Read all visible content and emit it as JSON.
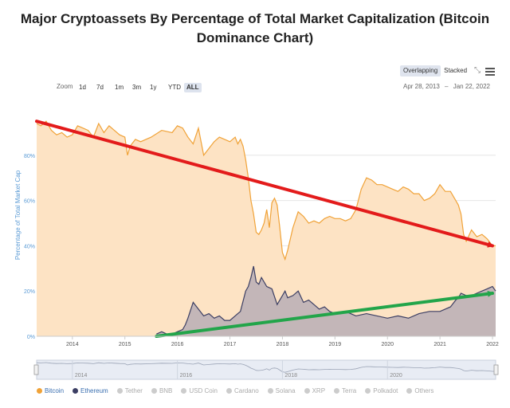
{
  "chart_data": {
    "type": "area",
    "title": "Major Cryptoassets By Percentage of Total Market Capitalization (Bitcoin Dominance Chart)",
    "title_lines": [
      "Major Cryptoassets By Percentage of Total Market Capitalization (Bitcoin",
      "Dominance Chart)"
    ],
    "ylabel": "Percentage of Total Market Cap",
    "xlim": [
      2013.32,
      2022.06
    ],
    "ylim": [
      0,
      100
    ],
    "x_ticks": [
      "2014",
      "2015",
      "2016",
      "2017",
      "2018",
      "2019",
      "2020",
      "2021",
      "2022"
    ],
    "y_ticks": [
      "0%",
      "20%",
      "40%",
      "60%",
      "80%"
    ],
    "y_tick_values": [
      0,
      20,
      40,
      60,
      80
    ],
    "series": [
      {
        "name": "Bitcoin",
        "color": "#f0a237",
        "fill": "#fde3c4",
        "x": [
          2013.32,
          2013.4,
          2013.5,
          2013.6,
          2013.7,
          2013.8,
          2013.9,
          2014.0,
          2014.1,
          2014.2,
          2014.3,
          2014.4,
          2014.5,
          2014.6,
          2014.7,
          2014.8,
          2014.9,
          2015.0,
          2015.05,
          2015.1,
          2015.2,
          2015.3,
          2015.5,
          2015.7,
          2015.9,
          2016.0,
          2016.1,
          2016.2,
          2016.3,
          2016.4,
          2016.5,
          2016.6,
          2016.7,
          2016.8,
          2016.9,
          2017.0,
          2017.1,
          2017.15,
          2017.2,
          2017.25,
          2017.3,
          2017.35,
          2017.4,
          2017.45,
          2017.5,
          2017.55,
          2017.6,
          2017.65,
          2017.7,
          2017.75,
          2017.8,
          2017.85,
          2017.9,
          2017.95,
          2018.0,
          2018.05,
          2018.1,
          2018.2,
          2018.3,
          2018.4,
          2018.5,
          2018.6,
          2018.7,
          2018.8,
          2018.9,
          2019.0,
          2019.1,
          2019.2,
          2019.3,
          2019.4,
          2019.5,
          2019.6,
          2019.7,
          2019.8,
          2019.9,
          2020.0,
          2020.1,
          2020.2,
          2020.3,
          2020.4,
          2020.5,
          2020.6,
          2020.7,
          2020.8,
          2020.9,
          2021.0,
          2021.1,
          2021.2,
          2021.3,
          2021.35,
          2021.4,
          2021.45,
          2021.5,
          2021.6,
          2021.7,
          2021.8,
          2021.9,
          2022.0,
          2022.06
        ],
        "values": [
          94,
          93,
          95,
          91,
          89,
          90,
          88,
          89,
          93,
          92,
          91,
          88,
          94,
          90,
          93,
          91,
          89,
          88,
          80,
          84,
          87,
          86,
          88,
          91,
          90,
          93,
          92,
          88,
          85,
          92,
          80,
          83,
          86,
          88,
          87,
          86,
          88,
          85,
          87,
          84,
          78,
          70,
          60,
          54,
          46,
          45,
          47,
          50,
          56,
          48,
          59,
          61,
          58,
          48,
          37,
          34,
          38,
          48,
          55,
          53,
          50,
          51,
          50,
          52,
          53,
          52,
          52,
          51,
          52,
          56,
          65,
          70,
          69,
          67,
          67,
          66,
          65,
          64,
          66,
          65,
          63,
          63,
          60,
          61,
          63,
          67,
          64,
          64,
          60,
          58,
          54,
          45,
          42,
          47,
          44,
          45,
          43,
          40,
          40
        ]
      },
      {
        "name": "Ethereum",
        "color": "#3b3e63",
        "fill": "#b8aeb6",
        "x": [
          2015.6,
          2015.7,
          2015.8,
          2015.9,
          2016.0,
          2016.1,
          2016.15,
          2016.2,
          2016.3,
          2016.4,
          2016.5,
          2016.6,
          2016.7,
          2016.8,
          2016.9,
          2017.0,
          2017.1,
          2017.15,
          2017.2,
          2017.3,
          2017.35,
          2017.4,
          2017.45,
          2017.5,
          2017.55,
          2017.6,
          2017.7,
          2017.8,
          2017.9,
          2018.0,
          2018.05,
          2018.1,
          2018.2,
          2018.3,
          2018.4,
          2018.5,
          2018.6,
          2018.7,
          2018.8,
          2018.9,
          2019.0,
          2019.2,
          2019.4,
          2019.6,
          2019.8,
          2020.0,
          2020.2,
          2020.4,
          2020.6,
          2020.8,
          2021.0,
          2021.1,
          2021.2,
          2021.3,
          2021.35,
          2021.4,
          2021.5,
          2021.6,
          2021.7,
          2021.8,
          2021.9,
          2022.0,
          2022.06
        ],
        "values": [
          1,
          2,
          1,
          1,
          2,
          3,
          5,
          8,
          15,
          12,
          9,
          10,
          8,
          9,
          7,
          7,
          9,
          10,
          11,
          20,
          22,
          26,
          31,
          24,
          23,
          26,
          22,
          21,
          14,
          18,
          20,
          17,
          18,
          20,
          15,
          16,
          14,
          12,
          13,
          11,
          10,
          11,
          9,
          10,
          9,
          8,
          9,
          8,
          10,
          11,
          11,
          12,
          13,
          16,
          17,
          19,
          18,
          18,
          19,
          20,
          21,
          22,
          20
        ]
      }
    ],
    "annotations": [
      {
        "type": "trend-arrow",
        "color": "#e31b1b",
        "from": [
          2013.32,
          95
        ],
        "to": [
          2022.06,
          40
        ]
      },
      {
        "type": "trend-arrow",
        "color": "#22a54a",
        "from": [
          2015.6,
          0
        ],
        "to": [
          2022.06,
          19
        ]
      }
    ],
    "navigator_ticks": [
      "2014",
      "2016",
      "2018",
      "2020"
    ],
    "legend_placement": "bottom"
  },
  "controls": {
    "zoom_label": "Zoom",
    "zoom_buttons": [
      "1d",
      "7d",
      "1m",
      "3m",
      "1y",
      "YTD",
      "ALL"
    ],
    "zoom_selected": "ALL",
    "mode_options": [
      "Overlapping",
      "Stacked"
    ],
    "mode_selected": "Overlapping",
    "date_from": "Apr 28, 2013",
    "date_sep": "–",
    "date_to": "Jan 22, 2022"
  },
  "legend": [
    {
      "label": "Bitcoin",
      "color": "#f0a237",
      "on": true
    },
    {
      "label": "Ethereum",
      "color": "#3b3e63",
      "on": true
    },
    {
      "label": "Tether",
      "color": "#cccccc",
      "on": false
    },
    {
      "label": "BNB",
      "color": "#cccccc",
      "on": false
    },
    {
      "label": "USD Coin",
      "color": "#cccccc",
      "on": false
    },
    {
      "label": "Cardano",
      "color": "#cccccc",
      "on": false
    },
    {
      "label": "Solana",
      "color": "#cccccc",
      "on": false
    },
    {
      "label": "XRP",
      "color": "#cccccc",
      "on": false
    },
    {
      "label": "Terra",
      "color": "#cccccc",
      "on": false
    },
    {
      "label": "Polkadot",
      "color": "#cccccc",
      "on": false
    },
    {
      "label": "Others",
      "color": "#cccccc",
      "on": false
    }
  ]
}
